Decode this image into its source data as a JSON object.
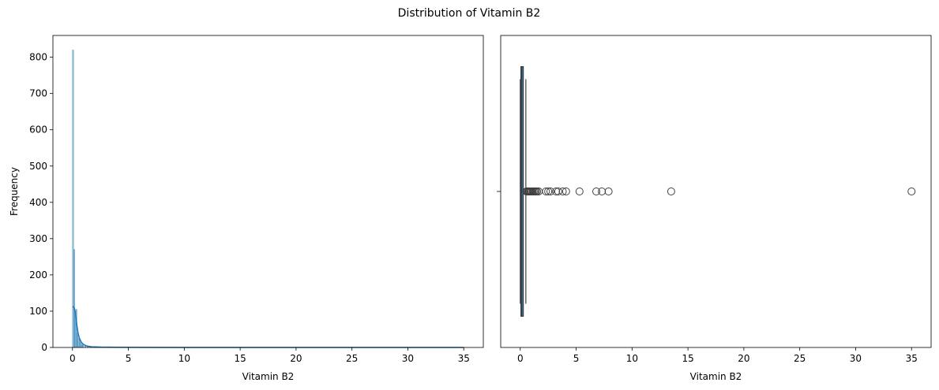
{
  "figure": {
    "suptitle": "Distribution of Vitamin B2"
  },
  "colors": {
    "histogram_fill": "#1f77b4",
    "kde_line": "#1f77b4",
    "box_edge": "#3f3f3f",
    "box_fill": "#1f77b4"
  },
  "chart_data": [
    {
      "type": "histogram",
      "xlabel": "Vitamin B2",
      "ylabel": "Frequency",
      "xlim": [
        -1.75,
        36.75
      ],
      "ylim": [
        0,
        860
      ],
      "xticks": [
        0,
        5,
        10,
        15,
        20,
        25,
        30,
        35
      ],
      "yticks": [
        0,
        100,
        200,
        300,
        400,
        500,
        600,
        700,
        800
      ],
      "bins": [
        {
          "x": 0.0,
          "count": 820
        },
        {
          "x": 0.1,
          "count": 270
        },
        {
          "x": 0.2,
          "count": 100
        },
        {
          "x": 0.3,
          "count": 105
        },
        {
          "x": 0.4,
          "count": 40
        },
        {
          "x": 0.5,
          "count": 25
        },
        {
          "x": 0.6,
          "count": 20
        },
        {
          "x": 0.7,
          "count": 12
        },
        {
          "x": 0.8,
          "count": 8
        },
        {
          "x": 0.9,
          "count": 6
        },
        {
          "x": 1.1,
          "count": 4
        },
        {
          "x": 1.3,
          "count": 3
        },
        {
          "x": 1.6,
          "count": 2
        },
        {
          "x": 2.0,
          "count": 2
        },
        {
          "x": 2.5,
          "count": 1
        },
        {
          "x": 3.5,
          "count": 1
        }
      ],
      "kde": {
        "x": [
          0,
          0.1,
          0.2,
          0.3,
          0.4,
          0.5,
          0.6,
          0.8,
          1.0,
          1.3,
          1.7,
          2.5,
          4,
          6,
          10,
          20,
          35
        ],
        "y": [
          112,
          112,
          105,
          85,
          60,
          40,
          27,
          14,
          8,
          4,
          2,
          1,
          0.5,
          0.2,
          0.1,
          0,
          0
        ]
      }
    },
    {
      "type": "box",
      "xlabel": "Vitamin B2",
      "xlim": [
        -1.75,
        36.75
      ],
      "xticks": [
        0,
        5,
        10,
        15,
        20,
        25,
        30,
        35
      ],
      "box": {
        "q1": 0.06,
        "median": 0.12,
        "q3": 0.25,
        "whisker_low": 0.0,
        "whisker_high": 0.5
      },
      "outliers": [
        0.55,
        0.62,
        0.7,
        0.78,
        0.85,
        0.93,
        1.0,
        1.1,
        1.2,
        1.3,
        1.4,
        1.5,
        1.65,
        2.3,
        2.5,
        2.7,
        3.2,
        3.4,
        3.8,
        4.1,
        5.3,
        6.8,
        7.3,
        7.9,
        13.5,
        35.0
      ]
    }
  ]
}
